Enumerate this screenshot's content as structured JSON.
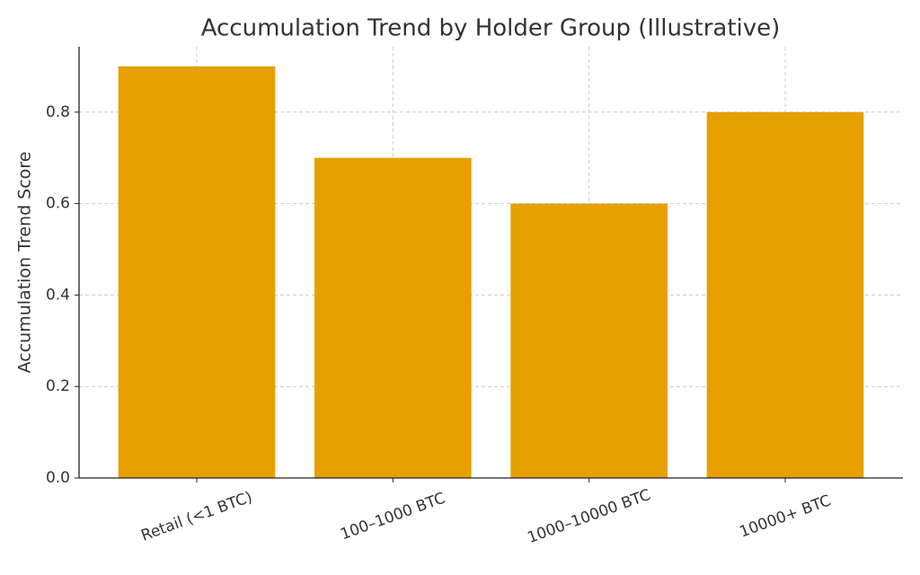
{
  "chart_data": {
    "type": "bar",
    "title": "Accumulation Trend by Holder Group (Illustrative)",
    "y_label": "Accumulation Trend Score",
    "categories": [
      "Retail (<1 BTC)",
      "100–1000 BTC",
      "1000–10000 BTC",
      "10000+ BTC"
    ],
    "values": [
      0.9,
      0.7,
      0.6,
      0.8
    ],
    "color": "#e6a000",
    "ylim": [
      0,
      0.943
    ],
    "yticks": [
      {
        "value": 0,
        "label": "0.0"
      },
      0.2,
      0.4,
      0.6,
      0.8
    ],
    "grid": true
  }
}
